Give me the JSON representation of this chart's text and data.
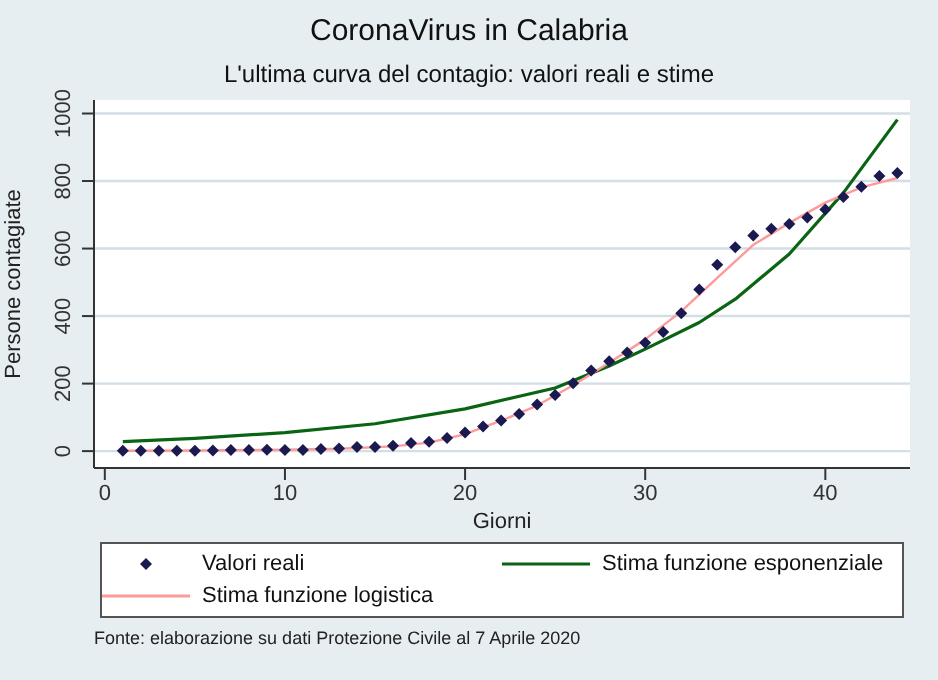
{
  "chart_data": {
    "type": "line",
    "title": "CoronaVirus in Calabria",
    "subtitle": "L'ultima curva del contagio: valori reali e stime",
    "xlabel": "Giorni",
    "ylabel": "Persone contagiate",
    "xlim": [
      -0.6,
      44.7
    ],
    "xticks": [
      0,
      10,
      20,
      30,
      40
    ],
    "ylim": [
      -50,
      1040
    ],
    "yticks": [
      0,
      200,
      400,
      600,
      800,
      1000
    ],
    "grid": "y",
    "legend": "bottom",
    "series": [
      {
        "name": "Valori reali",
        "type": "scatter",
        "marker": "diamond",
        "color": "#1a1a50",
        "x": [
          1,
          2,
          3,
          4,
          5,
          6,
          7,
          8,
          9,
          10,
          11,
          12,
          13,
          14,
          15,
          16,
          17,
          18,
          19,
          20,
          21,
          22,
          23,
          24,
          25,
          26,
          27,
          28,
          29,
          30,
          31,
          32,
          33,
          34,
          35,
          36,
          37,
          38,
          39,
          40,
          41,
          42,
          43,
          44
        ],
        "values": [
          1,
          1,
          1,
          1,
          1,
          2,
          3,
          3,
          4,
          3,
          3,
          6,
          8,
          12,
          12,
          16,
          24,
          28,
          39,
          55,
          73,
          91,
          110,
          138,
          166,
          201,
          239,
          266,
          292,
          321,
          353,
          408,
          479,
          552,
          604,
          639,
          659,
          673,
          692,
          716,
          753,
          783,
          815,
          824
        ]
      },
      {
        "name": "Stima funzione esponenziale",
        "color": "#0a6414",
        "x": [
          1,
          5,
          10,
          15,
          20,
          25,
          28,
          30,
          33,
          35,
          38,
          41,
          44
        ],
        "values": [
          28,
          38,
          55,
          81,
          125,
          187,
          252,
          302,
          381,
          450,
          584,
          765,
          982
        ]
      },
      {
        "name": "Stima funzione logistica",
        "color": "#ff9a9a",
        "x": [
          1,
          5,
          10,
          13,
          16,
          18,
          20,
          22,
          24,
          26,
          28,
          30,
          32,
          34,
          36,
          38,
          40,
          42,
          44
        ],
        "values": [
          1,
          2,
          4,
          7,
          14,
          25,
          50,
          90,
          135,
          195,
          262,
          331,
          414,
          513,
          611,
          676,
          736,
          781,
          809
        ]
      }
    ],
    "annotations": [
      "Fonte: elaborazione su dati Protezione Civile al 7 Aprile 2020"
    ]
  }
}
